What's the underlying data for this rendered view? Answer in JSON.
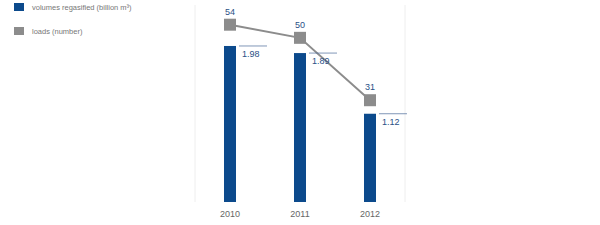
{
  "chart_data": {
    "type": "bar",
    "categories": [
      "2010",
      "2011",
      "2012"
    ],
    "series": [
      {
        "name": "volumes regasified (billion m³)",
        "type": "bar",
        "color": "#0c4a8c",
        "values": [
          1.98,
          1.89,
          1.12
        ]
      },
      {
        "name": "loads (number)",
        "type": "line",
        "axis": "y2",
        "color": "#8c8c8c",
        "marker": "square",
        "values": [
          54,
          50,
          31
        ]
      }
    ],
    "ylim": [
      0,
      2.5
    ],
    "y2lim": [
      0,
      60
    ],
    "tick_labels": "x",
    "data_labels": true,
    "legend": "top-left"
  }
}
